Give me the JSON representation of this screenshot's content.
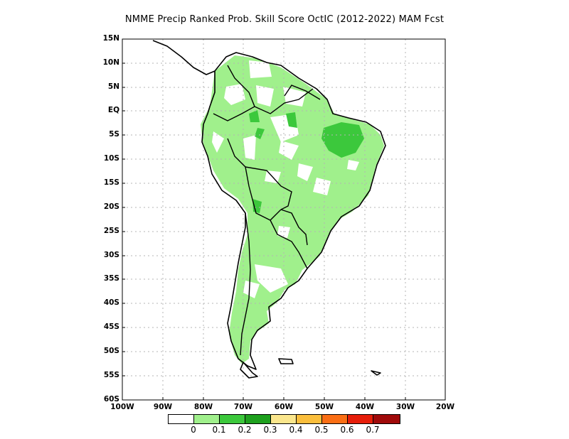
{
  "title": "NMME Precip Ranked Prob. Skill Score OctIC (2012-2022) MAM Fcst",
  "lat_labels": [
    "15N",
    "10N",
    "5N",
    "EQ",
    "5S",
    "10S",
    "15S",
    "20S",
    "25S",
    "30S",
    "35S",
    "40S",
    "45S",
    "50S",
    "55S",
    "60S"
  ],
  "lon_labels": [
    "100W",
    "90W",
    "80W",
    "70W",
    "60W",
    "50W",
    "40W",
    "30W",
    "20W"
  ],
  "colorbar": {
    "colors": [
      "#ffffff",
      "#a0f08c",
      "#3cc83c",
      "#1ea01e",
      "#fae68c",
      "#fabe3c",
      "#fa6e14",
      "#e61e0a",
      "#a00a0a"
    ],
    "labels": [
      "0",
      "0.1",
      "0.2",
      "0.3",
      "0.4",
      "0.5",
      "0.6",
      "0.7"
    ]
  },
  "colors": {
    "rpss_0_01": "#a0f08c",
    "rpss_01_02": "#3cc83c",
    "coast": "#000000",
    "grid": "#b4b4b4"
  }
}
